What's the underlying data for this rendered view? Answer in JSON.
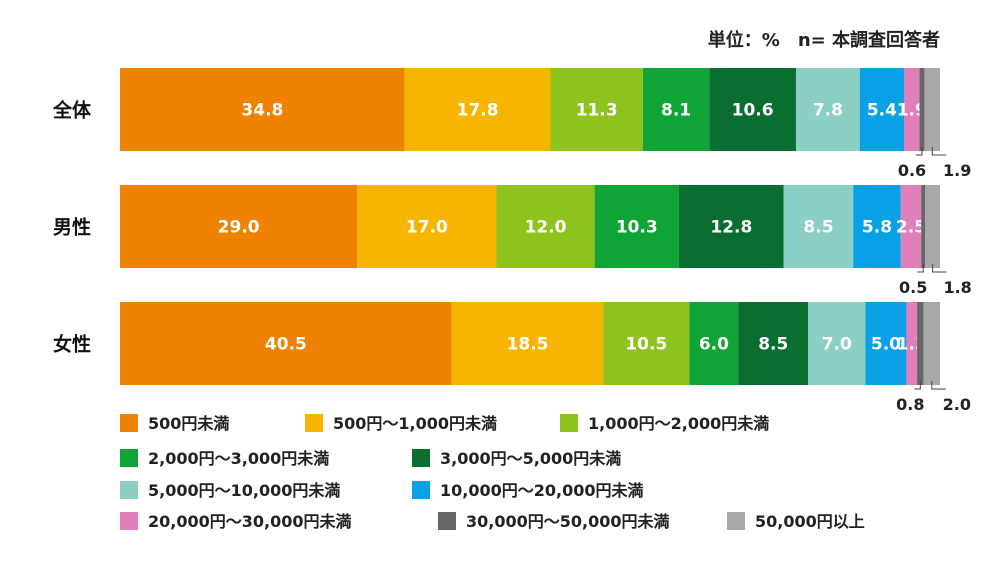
{
  "chart_data": {
    "type": "bar",
    "orientation": "horizontal",
    "stacked": true,
    "unit_note": "単位：%　n= 本調査回答者",
    "categories": [
      "全体",
      "男性",
      "女性"
    ],
    "series": [
      {
        "name": "500円未満",
        "color": "#ef8200",
        "values": [
          34.8,
          29.0,
          40.5
        ]
      },
      {
        "name": "500円～1,000円未満",
        "color": "#f7b500",
        "values": [
          17.8,
          17.0,
          18.5
        ]
      },
      {
        "name": "1,000円～2,000円未満",
        "color": "#8dc21f",
        "values": [
          11.3,
          12.0,
          10.5
        ]
      },
      {
        "name": "2,000円～3,000円未満",
        "color": "#0ea536",
        "values": [
          8.1,
          10.3,
          6.0
        ]
      },
      {
        "name": "3,000円～5,000円未満",
        "color": "#0a6e31",
        "values": [
          10.6,
          12.8,
          8.5
        ]
      },
      {
        "name": "5,000円～10,000円未満",
        "color": "#8ccfc5",
        "values": [
          7.8,
          8.5,
          7.0
        ]
      },
      {
        "name": "10,000円～20,000円未満",
        "color": "#0aa0e6",
        "values": [
          5.4,
          5.8,
          5.0
        ]
      },
      {
        "name": "20,000円～30,000円未満",
        "color": "#e07fb9",
        "values": [
          1.9,
          2.5,
          1.3
        ]
      },
      {
        "name": "30,000円～50,000円未満",
        "color": "#666666",
        "values": [
          0.6,
          0.5,
          0.8
        ]
      },
      {
        "name": "50,000円以上",
        "color": "#a8a8a8",
        "values": [
          1.9,
          1.8,
          2.0
        ]
      }
    ],
    "xlim": [
      0,
      100
    ],
    "legend_position": "bottom",
    "grid": false
  }
}
